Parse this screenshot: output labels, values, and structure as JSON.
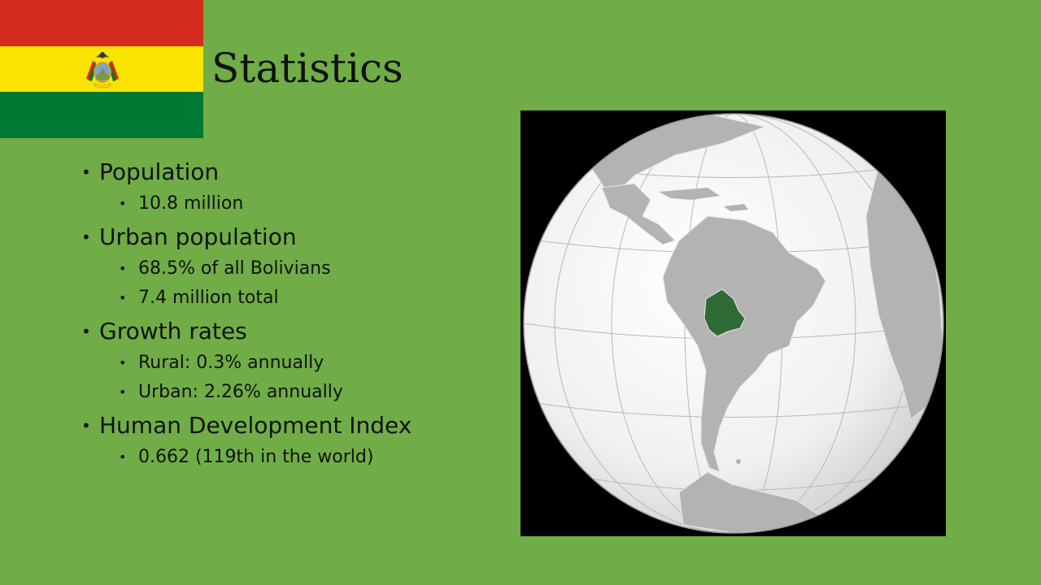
{
  "slide": {
    "title": "Statistics",
    "flag": {
      "colors": [
        "#d52b1e",
        "#f9e300",
        "#007934"
      ],
      "emblem": "coat-of-arms-icon"
    },
    "bullets": [
      {
        "label": "Population",
        "sub": [
          "10.8 million"
        ]
      },
      {
        "label": "Urban population",
        "sub": [
          "68.5% of all Bolivians",
          "7.4 million total"
        ]
      },
      {
        "label": "Growth rates",
        "sub": [
          "Rural: 0.3% annually",
          "Urban: 2.26% annually"
        ]
      },
      {
        "label": "Human Development Index",
        "sub": [
          "0.662 (119th in the world)"
        ]
      }
    ],
    "map": {
      "icon": "orthographic-globe-icon",
      "highlight_color": "#2e6b35",
      "land_color": "#b3b3b3",
      "ocean_color": "#f2f2f2"
    }
  }
}
